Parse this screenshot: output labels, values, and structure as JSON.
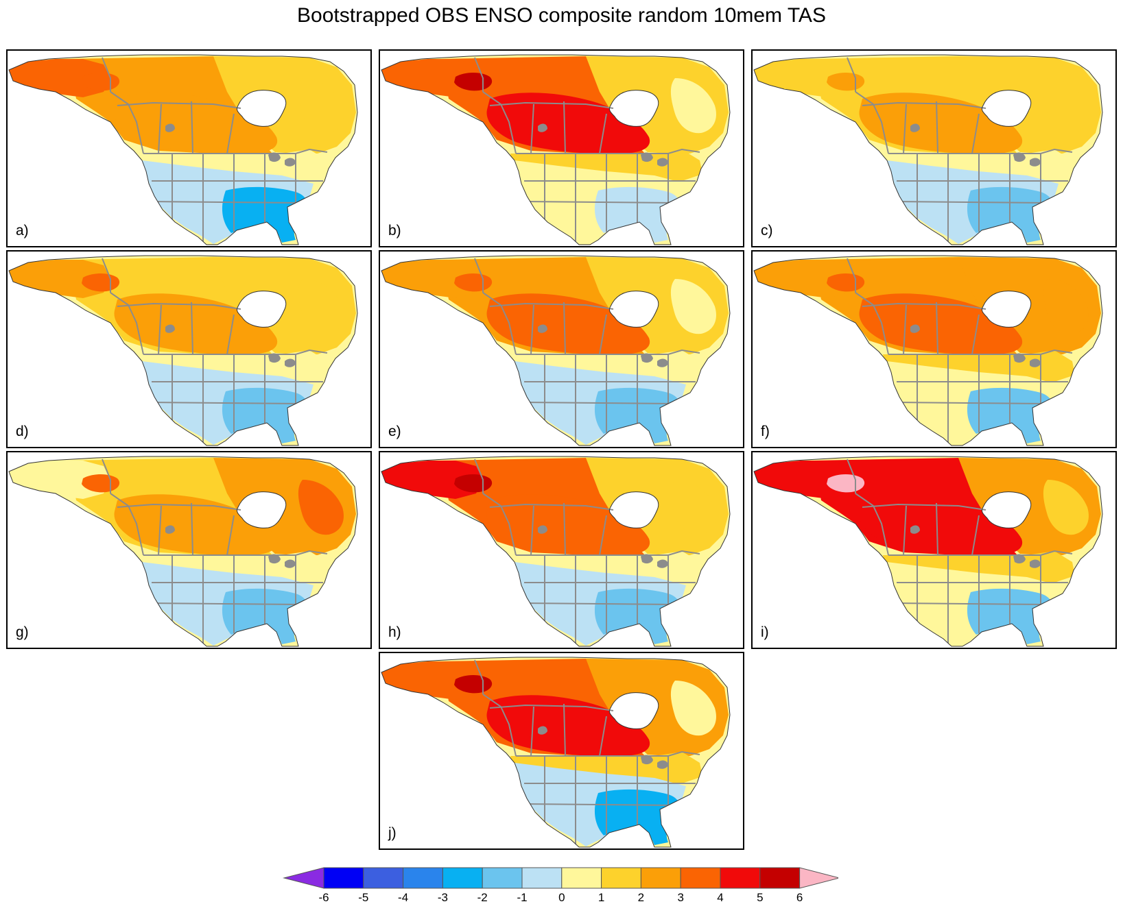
{
  "title": "Bootstrapped OBS ENSO composite random 10mem TAS",
  "colors": {
    "lt_neg6": "#8a2be2",
    "n6": "#0000f5",
    "n5": "#3c5fe0",
    "n4": "#2a84ec",
    "n3": "#08b0f2",
    "n2": "#6bc4ee",
    "n1": "#bce1f4",
    "p0": "#fff79b",
    "p1": "#fdd22c",
    "p2": "#fb9f08",
    "p3": "#fa6403",
    "p4": "#f10a0a",
    "p5": "#c40000",
    "gt_6": "#fbb6c4",
    "state_border": "#8c8c8c",
    "coast": "#333333"
  },
  "colorbar": {
    "ticks": [
      "-6",
      "-5",
      "-4",
      "-3",
      "-2",
      "-1",
      "0",
      "1",
      "2",
      "3",
      "4",
      "5",
      "6"
    ],
    "levels": [
      "n6",
      "n5",
      "n4",
      "n3",
      "n2",
      "n1",
      "p0",
      "p1",
      "p2",
      "p3",
      "p4",
      "p5"
    ]
  },
  "panels": [
    {
      "label": "a)",
      "alaska": "p3",
      "canada_w": "p2",
      "canada_e": "p1",
      "prairie": "p2",
      "usa_n": "p0",
      "usa_c": "n1",
      "usa_se": "n3",
      "north_atl": "p1",
      "hot_spot": "p3"
    },
    {
      "label": "b)",
      "alaska": "p3",
      "canada_w": "p3",
      "canada_e": "p1",
      "prairie": "p4",
      "usa_n": "p1",
      "usa_c": "p0",
      "usa_se": "n1",
      "north_atl": "p0",
      "hot_spot": "p5"
    },
    {
      "label": "c)",
      "alaska": "p1",
      "canada_w": "p1",
      "canada_e": "p1",
      "prairie": "p2",
      "usa_n": "p0",
      "usa_c": "n1",
      "usa_se": "n2",
      "north_atl": "p1",
      "hot_spot": "p2"
    },
    {
      "label": "d)",
      "alaska": "p2",
      "canada_w": "p1",
      "canada_e": "p1",
      "prairie": "p2",
      "usa_n": "p0",
      "usa_c": "n1",
      "usa_se": "n2",
      "north_atl": "p1",
      "hot_spot": "p3"
    },
    {
      "label": "e)",
      "alaska": "p2",
      "canada_w": "p2",
      "canada_e": "p1",
      "prairie": "p3",
      "usa_n": "p0",
      "usa_c": "n1",
      "usa_se": "n2",
      "north_atl": "p0",
      "hot_spot": "p3"
    },
    {
      "label": "f)",
      "alaska": "p2",
      "canada_w": "p2",
      "canada_e": "p2",
      "prairie": "p3",
      "usa_n": "p1",
      "usa_c": "p0",
      "usa_se": "n2",
      "north_atl": "p2",
      "hot_spot": "p3"
    },
    {
      "label": "g)",
      "alaska": "p0",
      "canada_w": "p1",
      "canada_e": "p2",
      "prairie": "p2",
      "usa_n": "p0",
      "usa_c": "n1",
      "usa_se": "n2",
      "north_atl": "p3",
      "hot_spot": "p3"
    },
    {
      "label": "h)",
      "alaska": "p4",
      "canada_w": "p3",
      "canada_e": "p1",
      "prairie": "p3",
      "usa_n": "p0",
      "usa_c": "n1",
      "usa_se": "n2",
      "north_atl": "p1",
      "hot_spot": "p5"
    },
    {
      "label": "i)",
      "alaska": "p4",
      "canada_w": "p4",
      "canada_e": "p2",
      "prairie": "p4",
      "usa_n": "p1",
      "usa_c": "p0",
      "usa_se": "n2",
      "north_atl": "p1",
      "hot_spot": "gt_6"
    },
    {
      "label": "j)",
      "alaska": "p3",
      "canada_w": "p3",
      "canada_e": "p2",
      "prairie": "p4",
      "usa_n": "p1",
      "usa_c": "n1",
      "usa_se": "n3",
      "north_atl": "p0",
      "hot_spot": "p5"
    }
  ]
}
